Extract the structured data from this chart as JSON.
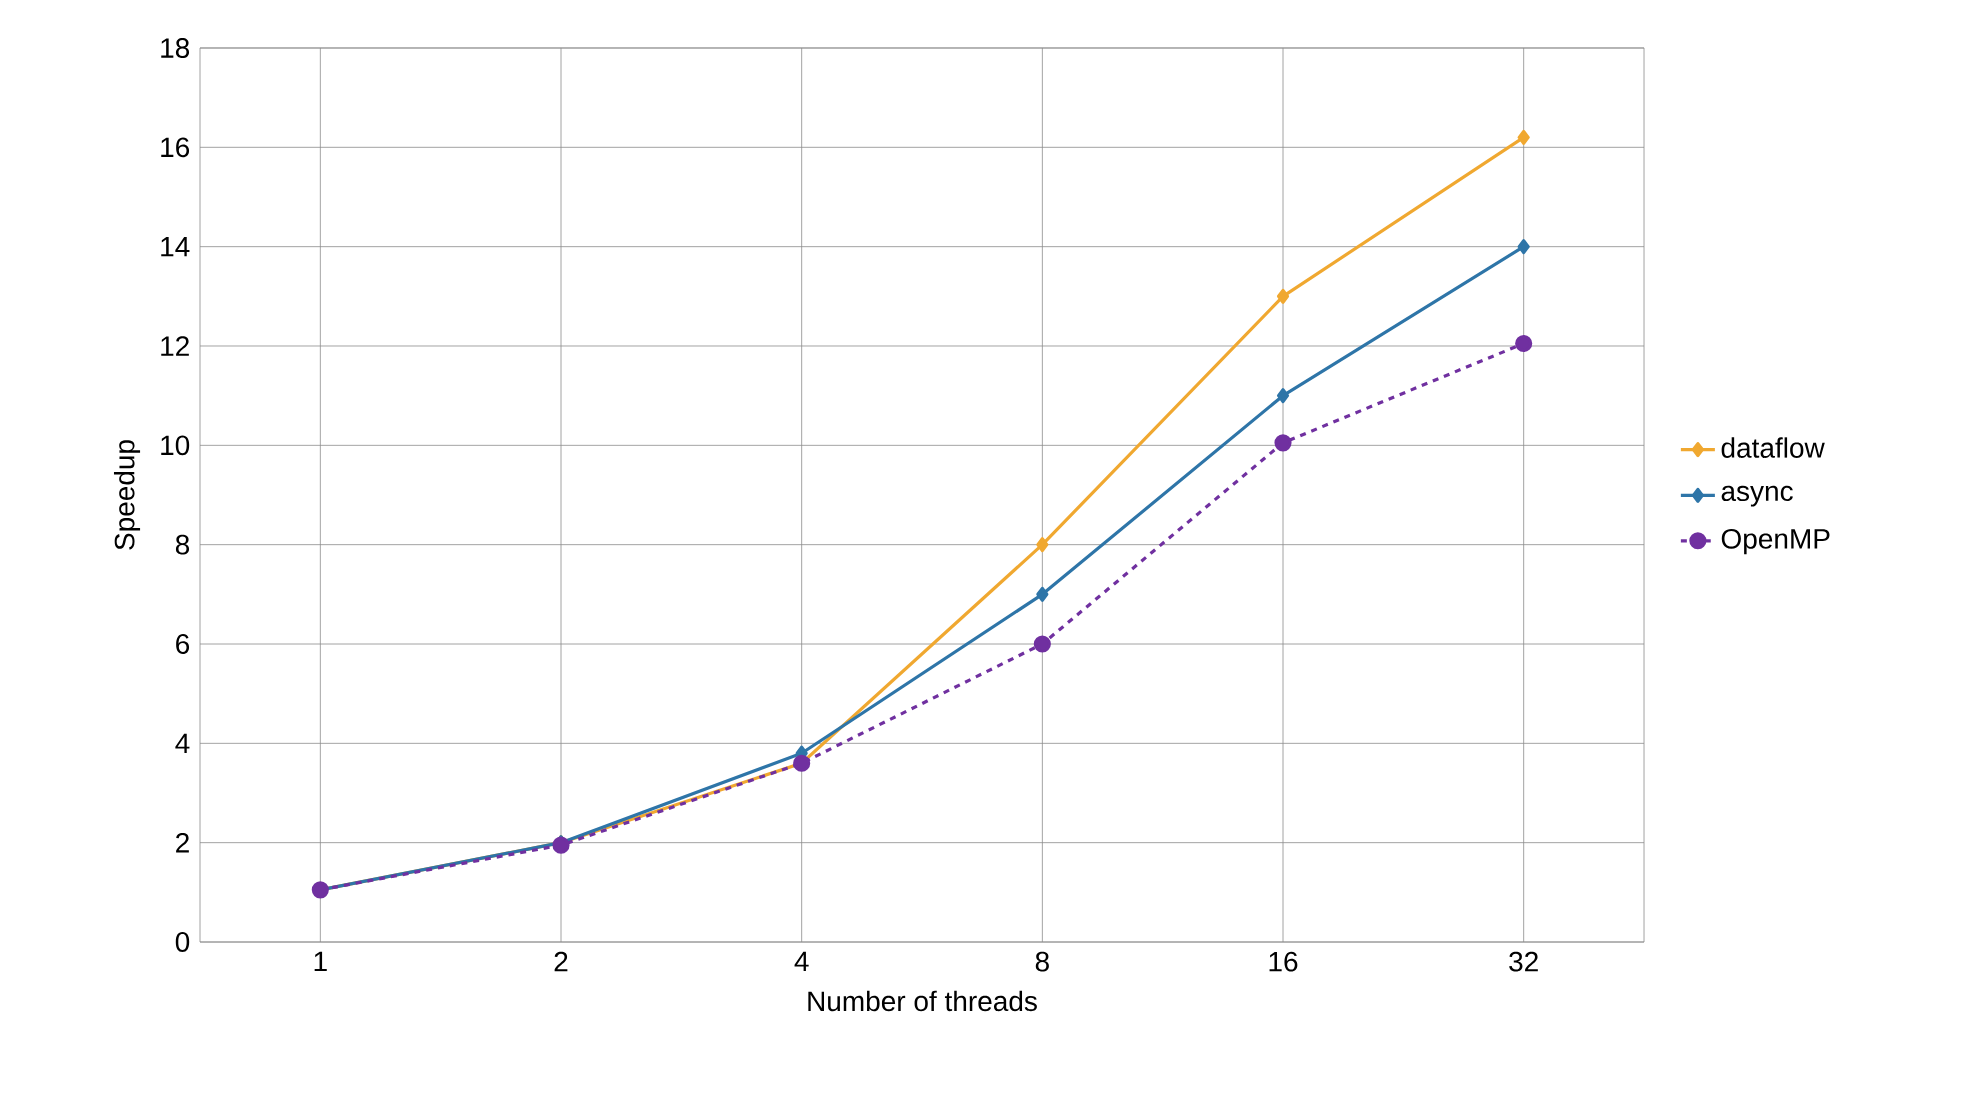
{
  "chart_data": {
    "type": "line",
    "xlabel": "Number of threads",
    "ylabel": "Speedup",
    "categories": [
      "1",
      "2",
      "4",
      "8",
      "16",
      "32"
    ],
    "series": [
      {
        "name": "dataflow",
        "color": "#f0a830",
        "marker": "diamond",
        "line_style": "solid",
        "values": [
          1.05,
          2.0,
          3.6,
          8.0,
          13.0,
          16.2
        ]
      },
      {
        "name": "async",
        "color": "#2e75a8",
        "marker": "diamond",
        "line_style": "solid",
        "values": [
          1.05,
          2.0,
          3.8,
          7.0,
          11.0,
          14.0
        ]
      },
      {
        "name": "OpenMP",
        "color": "#7030a0",
        "marker": "circle",
        "line_style": "dashed",
        "values": [
          1.05,
          1.95,
          3.6,
          6.0,
          10.05,
          12.05
        ]
      }
    ],
    "ylim": [
      0,
      18
    ],
    "yticks": [
      0,
      2,
      4,
      6,
      8,
      10,
      12,
      14,
      16,
      18
    ],
    "grid": true,
    "legend": "right"
  }
}
